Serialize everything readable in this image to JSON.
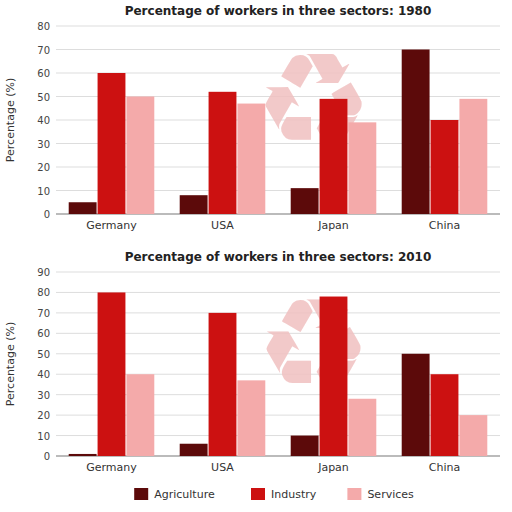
{
  "chart_data": [
    {
      "type": "bar",
      "title": "Percentage of workers in three sectors: 1980",
      "y_label": "Percentage (%)",
      "categories": [
        "Germany",
        "USA",
        "Japan",
        "China"
      ],
      "series": [
        {
          "name": "Agriculture",
          "color": "#5c0a0a",
          "values": [
            5,
            8,
            11,
            70
          ]
        },
        {
          "name": "Industry",
          "color": "#cc1111",
          "values": [
            60,
            52,
            49,
            40
          ]
        },
        {
          "name": "Services",
          "color": "#f4aaaa",
          "values": [
            50,
            47,
            39,
            49
          ]
        }
      ],
      "ylim": [
        0,
        80
      ],
      "yticks": [
        0,
        10,
        20,
        30,
        40,
        50,
        60,
        70,
        80
      ],
      "grid": true,
      "annotations": [
        {
          "text": "♻",
          "color": "#f0c0c0"
        }
      ]
    },
    {
      "type": "bar",
      "title": "Percentage of workers in three sectors: 2010",
      "y_label": "Percentage (%)",
      "categories": [
        "Germany",
        "USA",
        "Japan",
        "China"
      ],
      "series": [
        {
          "name": "Agriculture",
          "color": "#5c0a0a",
          "values": [
            1,
            6,
            10,
            50
          ]
        },
        {
          "name": "Industry",
          "color": "#cc1111",
          "values": [
            80,
            70,
            78,
            40
          ]
        },
        {
          "name": "Services",
          "color": "#f4aaaa",
          "values": [
            40,
            37,
            28,
            20
          ]
        }
      ],
      "ylim": [
        0,
        90
      ],
      "yticks": [
        0,
        10,
        20,
        30,
        40,
        50,
        60,
        70,
        80,
        90
      ],
      "grid": true,
      "legend": "bottom",
      "annotations": [
        {
          "text": "♻",
          "color": "#f0c0c0"
        }
      ]
    }
  ]
}
